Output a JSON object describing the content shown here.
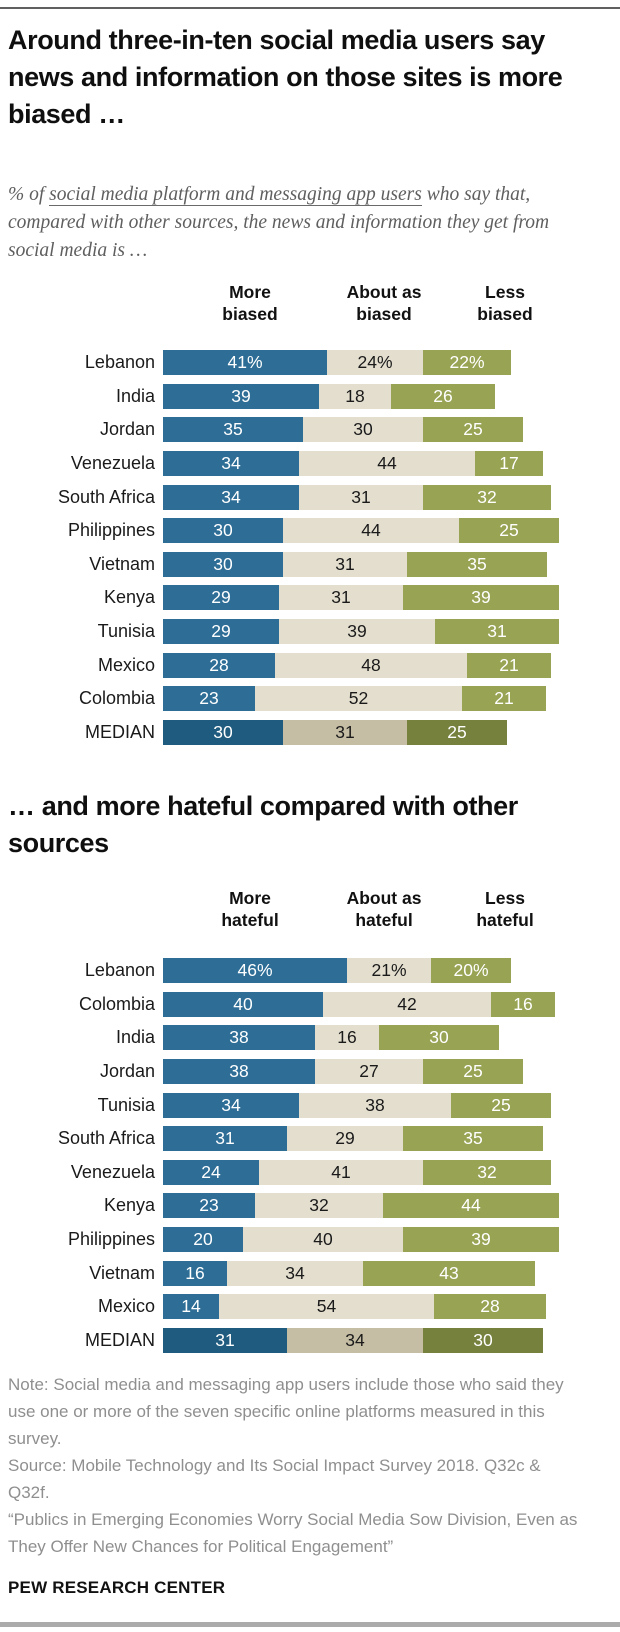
{
  "page": {
    "title1": "Around three-in-ten social media users say news and information on those sites is more biased …",
    "title2": "… and more hateful compared with other sources",
    "subtitle": {
      "prefix": "% of ",
      "underlined": "social media platform and messaging app users",
      "suffix": " who say that, compared with other sources, the news and information they get from social media is …"
    },
    "footer": {
      "note": "Note: Social media and messaging app users include those who said they use one or more of the seven specific online platforms measured in this survey.",
      "source": "Source: Mobile Technology and Its Social Impact Survey 2018. Q32c & Q32f.",
      "report": "“Publics in Emerging Economies Worry Social Media Sow Division, Even as They Offer New Chances for Political Engagement”",
      "brand": "PEW RESEARCH CENTER"
    }
  },
  "colors": {
    "more": "#2D6D96",
    "about": "#E3DECE",
    "less": "#98A354",
    "median_more": "#1F5B7E",
    "median_about": "#C6BEA4",
    "median_less": "#75813D",
    "value_light": "#FFFFFF",
    "value_dark": "#1A1A1A"
  },
  "chart_data": [
    {
      "type": "bar",
      "variant": "horizontal-stacked",
      "title": "Around three-in-ten social media users say news and information on those sites is more biased …",
      "columns": [
        "More biased",
        "About as biased",
        "Less biased"
      ],
      "unit": "%",
      "xlim": [
        0,
        100
      ],
      "legend_position": "column-headers",
      "grid": false,
      "rows": [
        {
          "label": "Lebanon",
          "values": [
            41,
            24,
            22
          ],
          "display": [
            "41%",
            "24%",
            "22%"
          ],
          "median": false
        },
        {
          "label": "India",
          "values": [
            39,
            18,
            26
          ],
          "display": [
            "39",
            "18",
            "26"
          ],
          "median": false
        },
        {
          "label": "Jordan",
          "values": [
            35,
            30,
            25
          ],
          "display": [
            "35",
            "30",
            "25"
          ],
          "median": false
        },
        {
          "label": "Venezuela",
          "values": [
            34,
            44,
            17
          ],
          "display": [
            "34",
            "44",
            "17"
          ],
          "median": false
        },
        {
          "label": "South Africa",
          "values": [
            34,
            31,
            32
          ],
          "display": [
            "34",
            "31",
            "32"
          ],
          "median": false
        },
        {
          "label": "Philippines",
          "values": [
            30,
            44,
            25
          ],
          "display": [
            "30",
            "44",
            "25"
          ],
          "median": false
        },
        {
          "label": "Vietnam",
          "values": [
            30,
            31,
            35
          ],
          "display": [
            "30",
            "31",
            "35"
          ],
          "median": false
        },
        {
          "label": "Kenya",
          "values": [
            29,
            31,
            39
          ],
          "display": [
            "29",
            "31",
            "39"
          ],
          "median": false
        },
        {
          "label": "Tunisia",
          "values": [
            29,
            39,
            31
          ],
          "display": [
            "29",
            "39",
            "31"
          ],
          "median": false
        },
        {
          "label": "Mexico",
          "values": [
            28,
            48,
            21
          ],
          "display": [
            "28",
            "48",
            "21"
          ],
          "median": false
        },
        {
          "label": "Colombia",
          "values": [
            23,
            52,
            21
          ],
          "display": [
            "23",
            "52",
            "21"
          ],
          "median": false
        },
        {
          "label": "MEDIAN",
          "values": [
            30,
            31,
            25
          ],
          "display": [
            "30",
            "31",
            "25"
          ],
          "median": true
        }
      ]
    },
    {
      "type": "bar",
      "variant": "horizontal-stacked",
      "title": "… and more hateful compared with other sources",
      "columns": [
        "More hateful",
        "About as hateful",
        "Less hateful"
      ],
      "unit": "%",
      "xlim": [
        0,
        100
      ],
      "legend_position": "column-headers",
      "grid": false,
      "rows": [
        {
          "label": "Lebanon",
          "values": [
            46,
            21,
            20
          ],
          "display": [
            "46%",
            "21%",
            "20%"
          ],
          "median": false
        },
        {
          "label": "Colombia",
          "values": [
            40,
            42,
            16
          ],
          "display": [
            "40",
            "42",
            "16"
          ],
          "median": false
        },
        {
          "label": "India",
          "values": [
            38,
            16,
            30
          ],
          "display": [
            "38",
            "16",
            "30"
          ],
          "median": false
        },
        {
          "label": "Jordan",
          "values": [
            38,
            27,
            25
          ],
          "display": [
            "38",
            "27",
            "25"
          ],
          "median": false
        },
        {
          "label": "Tunisia",
          "values": [
            34,
            38,
            25
          ],
          "display": [
            "34",
            "38",
            "25"
          ],
          "median": false
        },
        {
          "label": "South Africa",
          "values": [
            31,
            29,
            35
          ],
          "display": [
            "31",
            "29",
            "35"
          ],
          "median": false
        },
        {
          "label": "Venezuela",
          "values": [
            24,
            41,
            32
          ],
          "display": [
            "24",
            "41",
            "32"
          ],
          "median": false
        },
        {
          "label": "Kenya",
          "values": [
            23,
            32,
            44
          ],
          "display": [
            "23",
            "32",
            "44"
          ],
          "median": false
        },
        {
          "label": "Philippines",
          "values": [
            20,
            40,
            39
          ],
          "display": [
            "20",
            "40",
            "39"
          ],
          "median": false
        },
        {
          "label": "Vietnam",
          "values": [
            16,
            34,
            43
          ],
          "display": [
            "16",
            "34",
            "43"
          ],
          "median": false
        },
        {
          "label": "Mexico",
          "values": [
            14,
            54,
            28
          ],
          "display": [
            "14",
            "54",
            "28"
          ],
          "median": false
        },
        {
          "label": "MEDIAN",
          "values": [
            31,
            34,
            30
          ],
          "display": [
            "31",
            "34",
            "30"
          ],
          "median": true
        }
      ]
    }
  ]
}
